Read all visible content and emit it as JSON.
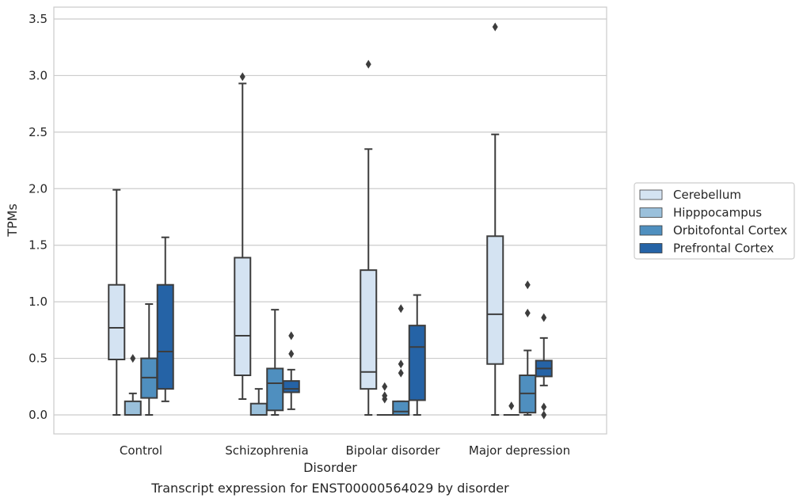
{
  "caption": "Transcript expression for ENST00000564029 by disorder",
  "chart_data": {
    "type": "boxplot",
    "xlabel": "Disorder",
    "ylabel": "TPMs",
    "categories": [
      "Control",
      "Schizophrenia",
      "Bipolar disorder",
      "Major depression"
    ],
    "ylim": [
      -0.17,
      3.6
    ],
    "yticks": [
      0.0,
      0.5,
      1.0,
      1.5,
      2.0,
      2.5,
      3.0,
      3.5
    ],
    "ytick_labels": [
      "0.0",
      "0.5",
      "1.0",
      "1.5",
      "2.0",
      "2.5",
      "3.0",
      "3.5"
    ],
    "grid": "horizontal",
    "legend_position": "right",
    "series": [
      {
        "name": "Cerebellum",
        "color": "#d4e3f2",
        "boxes": [
          {
            "whislo": 0.0,
            "q1": 0.49,
            "med": 0.77,
            "q3": 1.15,
            "whishi": 1.99,
            "fliers": []
          },
          {
            "whislo": 0.14,
            "q1": 0.35,
            "med": 0.7,
            "q3": 1.39,
            "whishi": 2.93,
            "fliers": [
              2.99
            ]
          },
          {
            "whislo": 0.0,
            "q1": 0.23,
            "med": 0.38,
            "q3": 1.28,
            "whishi": 2.35,
            "fliers": [
              3.1
            ]
          },
          {
            "whislo": 0.0,
            "q1": 0.45,
            "med": 0.89,
            "q3": 1.58,
            "whishi": 2.48,
            "fliers": [
              3.43
            ]
          }
        ]
      },
      {
        "name": "Hipppocampus",
        "color": "#9ac0db",
        "boxes": [
          {
            "whislo": 0.0,
            "q1": 0.0,
            "med": 0.0,
            "q3": 0.12,
            "whishi": 0.19,
            "fliers": [
              0.5
            ]
          },
          {
            "whislo": 0.0,
            "q1": 0.0,
            "med": 0.0,
            "q3": 0.1,
            "whishi": 0.23,
            "fliers": []
          },
          {
            "whislo": 0.0,
            "q1": 0.0,
            "med": 0.0,
            "q3": 0.0,
            "whishi": 0.0,
            "fliers": [
              0.25,
              0.17,
              0.14
            ]
          },
          {
            "whislo": 0.0,
            "q1": 0.0,
            "med": 0.0,
            "q3": 0.0,
            "whishi": 0.0,
            "fliers": [
              0.08
            ]
          }
        ]
      },
      {
        "name": "Orbitofontal Cortex",
        "color": "#4f8fbf",
        "boxes": [
          {
            "whislo": 0.0,
            "q1": 0.15,
            "med": 0.33,
            "q3": 0.5,
            "whishi": 0.98,
            "fliers": []
          },
          {
            "whislo": 0.0,
            "q1": 0.04,
            "med": 0.28,
            "q3": 0.41,
            "whishi": 0.93,
            "fliers": []
          },
          {
            "whislo": 0.0,
            "q1": 0.0,
            "med": 0.03,
            "q3": 0.12,
            "whishi": 0.12,
            "fliers": [
              0.94,
              0.45,
              0.37
            ]
          },
          {
            "whislo": 0.0,
            "q1": 0.02,
            "med": 0.19,
            "q3": 0.35,
            "whishi": 0.57,
            "fliers": [
              1.15,
              0.9
            ]
          }
        ]
      },
      {
        "name": "Prefrontal Cortex",
        "color": "#2563a6",
        "boxes": [
          {
            "whislo": 0.12,
            "q1": 0.23,
            "med": 0.56,
            "q3": 1.15,
            "whishi": 1.57,
            "fliers": []
          },
          {
            "whislo": 0.05,
            "q1": 0.2,
            "med": 0.23,
            "q3": 0.3,
            "whishi": 0.4,
            "fliers": [
              0.7,
              0.54
            ]
          },
          {
            "whislo": 0.0,
            "q1": 0.13,
            "med": 0.6,
            "q3": 0.79,
            "whishi": 1.06,
            "fliers": []
          },
          {
            "whislo": 0.26,
            "q1": 0.34,
            "med": 0.41,
            "q3": 0.48,
            "whishi": 0.68,
            "fliers": [
              0.86,
              0.07,
              0.0
            ]
          }
        ]
      }
    ]
  }
}
